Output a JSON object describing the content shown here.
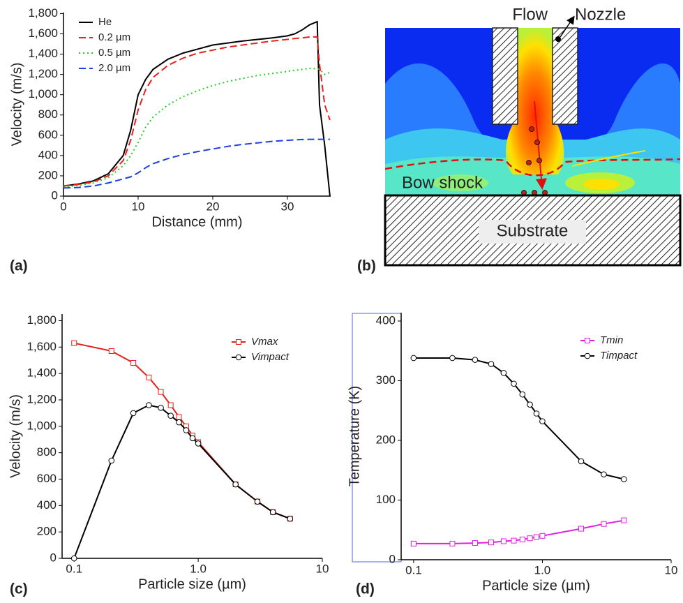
{
  "chart_data": [
    {
      "type": "line",
      "panel_label": "(a)",
      "x_label": "Distance (mm)",
      "y_label": "Velocity (m/s)",
      "x": [
        0,
        2,
        4,
        6,
        8,
        9,
        10,
        11,
        12,
        14,
        16,
        18,
        20,
        22,
        24,
        26,
        28,
        30,
        31,
        32,
        33,
        34,
        34.3,
        35,
        35.7
      ],
      "series": [
        {
          "name": "He",
          "color": "#000000",
          "dash": "solid",
          "values": [
            100,
            120,
            150,
            220,
            400,
            650,
            1000,
            1150,
            1250,
            1350,
            1410,
            1450,
            1490,
            1510,
            1530,
            1545,
            1560,
            1580,
            1600,
            1640,
            1690,
            1720,
            900,
            500,
            0
          ]
        },
        {
          "name": "0.2 µm",
          "color": "#e8201c",
          "dash": "dashed",
          "values": [
            100,
            115,
            140,
            200,
            350,
            550,
            850,
            1050,
            1170,
            1290,
            1360,
            1410,
            1440,
            1470,
            1490,
            1510,
            1530,
            1545,
            1555,
            1560,
            1570,
            1570,
            1300,
            900,
            750
          ]
        },
        {
          "name": "0.5 µm",
          "color": "#22cc22",
          "dash": "dotted",
          "values": [
            90,
            105,
            130,
            180,
            300,
            400,
            530,
            680,
            780,
            900,
            980,
            1040,
            1090,
            1130,
            1160,
            1190,
            1210,
            1230,
            1240,
            1250,
            1260,
            1255,
            1250,
            1200,
            1220
          ]
        },
        {
          "name": "2.0 µm",
          "color": "#1f3fe0",
          "dash": "dashed",
          "values": [
            80,
            85,
            100,
            130,
            170,
            190,
            230,
            280,
            320,
            370,
            410,
            440,
            465,
            490,
            510,
            525,
            540,
            550,
            555,
            558,
            560,
            560,
            560,
            560,
            560
          ]
        }
      ],
      "xlim": [
        0,
        35.8
      ],
      "ylim": [
        0,
        1810
      ],
      "xticks": [
        0,
        10,
        20,
        30
      ],
      "yticks": [
        0,
        200,
        400,
        600,
        800,
        {
          "value": 1000,
          "label": "1,000"
        },
        {
          "value": 1200,
          "label": "1,200"
        },
        {
          "value": 1400,
          "label": "1,400"
        },
        {
          "value": 1600,
          "label": "1,600"
        },
        {
          "value": 1800,
          "label": "1,800"
        }
      ],
      "legend": "upper left"
    },
    {
      "type": "line",
      "panel_label": "(c)",
      "x_label": "Particle size (µm)",
      "y_label": "Velocity (m/s)",
      "xscale": "log",
      "x": [
        0.1,
        0.2,
        0.3,
        0.4,
        0.5,
        0.6,
        0.7,
        0.8,
        0.9,
        1.0,
        2,
        3,
        4,
        5.5
      ],
      "series": [
        {
          "name": "Vmax",
          "color": "#e8201c",
          "marker": "square",
          "values": [
            1630,
            1570,
            1480,
            1370,
            1260,
            1160,
            1070,
            1000,
            930,
            880,
            560,
            430,
            350,
            300
          ]
        },
        {
          "name": "Vimpact",
          "color": "#000000",
          "marker": "circle",
          "values": [
            0,
            740,
            1100,
            1160,
            1140,
            1080,
            1030,
            970,
            910,
            870,
            560,
            430,
            350,
            300
          ]
        }
      ],
      "xlim": [
        0.08,
        10
      ],
      "ylim": [
        0,
        1850
      ],
      "xticks": [
        0.1,
        {
          "value": 1,
          "label": "1.0"
        },
        10
      ],
      "yticks": [
        0,
        200,
        400,
        600,
        800,
        {
          "value": 1000,
          "label": "1,000"
        },
        {
          "value": 1200,
          "label": "1,200"
        },
        {
          "value": 1400,
          "label": "1,400"
        },
        {
          "value": 1600,
          "label": "1,600"
        },
        {
          "value": 1800,
          "label": "1,800"
        }
      ],
      "legend": "upper right"
    },
    {
      "type": "line",
      "panel_label": "(d)",
      "x_label": "Particle size (µm)",
      "y_label": "Temperature (K)",
      "xscale": "log",
      "x": [
        0.1,
        0.2,
        0.3,
        0.4,
        0.5,
        0.6,
        0.7,
        0.8,
        0.9,
        1.0,
        2,
        3,
        4.3
      ],
      "series": [
        {
          "name": "Tmin",
          "color": "#e020e0",
          "marker": "square",
          "values": [
            27,
            27,
            28,
            29,
            31,
            32,
            34,
            36,
            38,
            40,
            52,
            60,
            66
          ]
        },
        {
          "name": "Timpact",
          "color": "#000000",
          "marker": "circle",
          "values": [
            338,
            338,
            335,
            328,
            313,
            295,
            277,
            260,
            245,
            232,
            165,
            143,
            135
          ]
        }
      ],
      "xlim": [
        0.08,
        10
      ],
      "ylim": [
        0,
        414
      ],
      "xticks": [
        0.1,
        {
          "value": 1,
          "label": "1.0"
        },
        10
      ],
      "yticks": [
        0,
        100,
        200,
        300,
        400
      ],
      "legend": "upper right"
    }
  ],
  "diagram": {
    "panel_label": "(b)",
    "flow": "Flow",
    "nozzle": "Nozzle",
    "bow_shock": "Bow shock",
    "substrate": "Substrate"
  }
}
